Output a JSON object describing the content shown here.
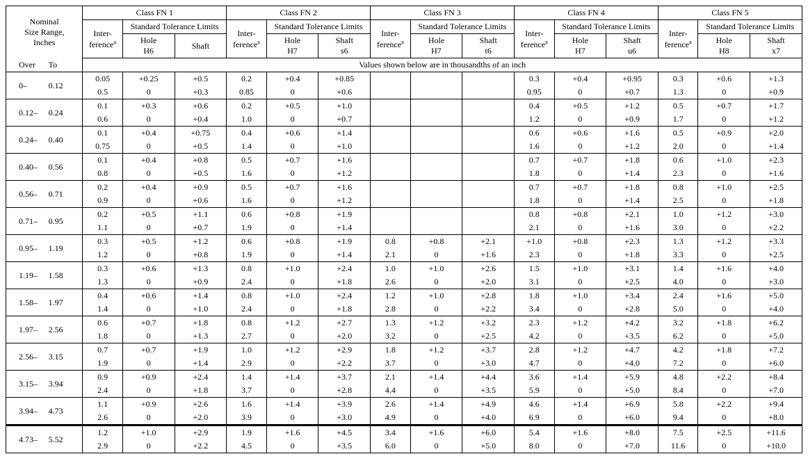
{
  "headings": {
    "nominal": "Nominal<br>Size Range,<br>Inches",
    "over": "Over",
    "to": "To",
    "class_fn1": "Class FN 1",
    "class_fn2": "Class FN 2",
    "class_fn3": "Class FN 3",
    "class_fn4": "Class FN 4",
    "class_fn5": "Class FN 5",
    "stl": "Standard Tolerance Limits",
    "inter": "Inter-<br>ference<sup>a</sup>",
    "hole_h6": "Hole<br>H6",
    "hole_h7": "Hole<br>H7",
    "hole_h8": "Hole<br>H8",
    "shaft_blank": "Shaft",
    "shaft_s6": "Shaft<br>s6",
    "shaft_t6": "Shaft<br>t6",
    "shaft_u6": "Shaft<br>u6",
    "shaft_x7": "Shaft<br>x7",
    "values_note": "Values shown below are in thousandths of an inch"
  },
  "rows": [
    {
      "over": "0–",
      "to": "0.12",
      "fn1": {
        "int": [
          "0.05",
          "0.5"
        ],
        "hole": [
          "+0.25",
          "0"
        ],
        "shaft": [
          "+0.5",
          "+0.3"
        ]
      },
      "fn2": {
        "int": [
          "0.2",
          "0.85"
        ],
        "hole": [
          "+0.4",
          "0"
        ],
        "shaft": [
          "+0.85",
          "+0.6"
        ]
      },
      "fn3": {
        "int": [
          "",
          ""
        ],
        "hole": [
          "",
          ""
        ],
        "shaft": [
          "",
          ""
        ]
      },
      "fn4": {
        "int": [
          "0.3",
          "0.95"
        ],
        "hole": [
          "+0.4",
          "0"
        ],
        "shaft": [
          "+0.95",
          "+0.7"
        ]
      },
      "fn5": {
        "int": [
          "0.3",
          "1.3"
        ],
        "hole": [
          "+0.6",
          "0"
        ],
        "shaft": [
          "+1.3",
          "+0.9"
        ]
      }
    },
    {
      "over": "0.12–",
      "to": "0.24",
      "fn1": {
        "int": [
          "0.1",
          "0.6"
        ],
        "hole": [
          "+0.3",
          "0"
        ],
        "shaft": [
          "+0.6",
          "+0.4"
        ]
      },
      "fn2": {
        "int": [
          "0.2",
          "1.0"
        ],
        "hole": [
          "+0.5",
          "0"
        ],
        "shaft": [
          "+1.0",
          "+0.7"
        ]
      },
      "fn3": {
        "int": [
          "",
          ""
        ],
        "hole": [
          "",
          ""
        ],
        "shaft": [
          "",
          ""
        ]
      },
      "fn4": {
        "int": [
          "0.4",
          "1.2"
        ],
        "hole": [
          "+0.5",
          "0"
        ],
        "shaft": [
          "+1.2",
          "+0.9"
        ]
      },
      "fn5": {
        "int": [
          "0.5",
          "1.7"
        ],
        "hole": [
          "+0.7",
          "0"
        ],
        "shaft": [
          "+1.7",
          "+1.2"
        ]
      }
    },
    {
      "over": "0.24–",
      "to": "0.40",
      "fn1": {
        "int": [
          "0.1",
          "0.75"
        ],
        "hole": [
          "+0.4",
          "0"
        ],
        "shaft": [
          "+0.75",
          "+0.5"
        ]
      },
      "fn2": {
        "int": [
          "0.4",
          "1.4"
        ],
        "hole": [
          "+0.6",
          "0"
        ],
        "shaft": [
          "+1.4",
          "+1.0"
        ]
      },
      "fn3": {
        "int": [
          "",
          ""
        ],
        "hole": [
          "",
          ""
        ],
        "shaft": [
          "",
          ""
        ]
      },
      "fn4": {
        "int": [
          "0.6",
          "1.6"
        ],
        "hole": [
          "+0.6",
          "0"
        ],
        "shaft": [
          "+1.6",
          "+1.2"
        ]
      },
      "fn5": {
        "int": [
          "0.5",
          "2.0"
        ],
        "hole": [
          "+0.9",
          "0"
        ],
        "shaft": [
          "+2.0",
          "+1.4"
        ]
      }
    },
    {
      "over": "0.40–",
      "to": "0.56",
      "fn1": {
        "int": [
          "0.1",
          "0.8"
        ],
        "hole": [
          "+0.4",
          "0"
        ],
        "shaft": [
          "+0.8",
          "+0.5"
        ]
      },
      "fn2": {
        "int": [
          "0.5",
          "1.6"
        ],
        "hole": [
          "+0.7",
          "0"
        ],
        "shaft": [
          "+1.6",
          "+1.2"
        ]
      },
      "fn3": {
        "int": [
          "",
          ""
        ],
        "hole": [
          "",
          ""
        ],
        "shaft": [
          "",
          ""
        ]
      },
      "fn4": {
        "int": [
          "0.7",
          "1.8"
        ],
        "hole": [
          "+0.7",
          "0"
        ],
        "shaft": [
          "+1.8",
          "+1.4"
        ]
      },
      "fn5": {
        "int": [
          "0.6",
          "2.3"
        ],
        "hole": [
          "+1.0",
          "0"
        ],
        "shaft": [
          "+2.3",
          "+1.6"
        ]
      }
    },
    {
      "over": "0.56–",
      "to": "0.71",
      "fn1": {
        "int": [
          "0.2",
          "0.9"
        ],
        "hole": [
          "+0.4",
          "0"
        ],
        "shaft": [
          "+0.9",
          "+0.6"
        ]
      },
      "fn2": {
        "int": [
          "0.5",
          "1.6"
        ],
        "hole": [
          "+0.7",
          "0"
        ],
        "shaft": [
          "+1.6",
          "+1.2"
        ]
      },
      "fn3": {
        "int": [
          "",
          ""
        ],
        "hole": [
          "",
          ""
        ],
        "shaft": [
          "",
          ""
        ]
      },
      "fn4": {
        "int": [
          "0.7",
          "1.8"
        ],
        "hole": [
          "+0.7",
          "0"
        ],
        "shaft": [
          "+1.8",
          "+1.4"
        ]
      },
      "fn5": {
        "int": [
          "0.8",
          "2.5"
        ],
        "hole": [
          "+1.0",
          "0"
        ],
        "shaft": [
          "+2.5",
          "+1.8"
        ]
      }
    },
    {
      "over": "0.71–",
      "to": "0.95",
      "fn1": {
        "int": [
          "0.2",
          "1.1"
        ],
        "hole": [
          "+0.5",
          "0"
        ],
        "shaft": [
          "+1.1",
          "+0.7"
        ]
      },
      "fn2": {
        "int": [
          "0.6",
          "1.9"
        ],
        "hole": [
          "+0.8",
          "0"
        ],
        "shaft": [
          "+1.9",
          "+1.4"
        ]
      },
      "fn3": {
        "int": [
          "",
          ""
        ],
        "hole": [
          "",
          ""
        ],
        "shaft": [
          "",
          ""
        ]
      },
      "fn4": {
        "int": [
          "0.8",
          "2.1"
        ],
        "hole": [
          "+0.8",
          "0"
        ],
        "shaft": [
          "+2.1",
          "+1.6"
        ]
      },
      "fn5": {
        "int": [
          "1.0",
          "3.0"
        ],
        "hole": [
          "+1.2",
          "0"
        ],
        "shaft": [
          "+3.0",
          "+2.2"
        ]
      }
    },
    {
      "over": "0.95–",
      "to": "1.19",
      "fn1": {
        "int": [
          "0.3",
          "1.2"
        ],
        "hole": [
          "+0.5",
          "0"
        ],
        "shaft": [
          "+1.2",
          "+0.8"
        ]
      },
      "fn2": {
        "int": [
          "0.6",
          "1.9"
        ],
        "hole": [
          "+0.8",
          "0"
        ],
        "shaft": [
          "+1.9",
          "+1.4"
        ]
      },
      "fn3": {
        "int": [
          "0.8",
          "2.1"
        ],
        "hole": [
          "+0.8",
          "0"
        ],
        "shaft": [
          "+2.1",
          "+1.6"
        ]
      },
      "fn4": {
        "int": [
          "+1.0",
          "2.3"
        ],
        "hole": [
          "+0.8",
          "0"
        ],
        "shaft": [
          "+2.3",
          "+1.8"
        ]
      },
      "fn5": {
        "int": [
          "1.3",
          "3.3"
        ],
        "hole": [
          "+1.2",
          "0"
        ],
        "shaft": [
          "+3.3",
          "+2.5"
        ]
      }
    },
    {
      "over": "1.19–",
      "to": "1.58",
      "fn1": {
        "int": [
          "0.3",
          "1.3"
        ],
        "hole": [
          "+0.6",
          "0"
        ],
        "shaft": [
          "+1.3",
          "+0.9"
        ]
      },
      "fn2": {
        "int": [
          "0.8",
          "2.4"
        ],
        "hole": [
          "+1.0",
          "0"
        ],
        "shaft": [
          "+2.4",
          "+1.8"
        ]
      },
      "fn3": {
        "int": [
          "1.0",
          "2.6"
        ],
        "hole": [
          "+1.0",
          "0"
        ],
        "shaft": [
          "+2.6",
          "+2.0"
        ]
      },
      "fn4": {
        "int": [
          "1.5",
          "3.1"
        ],
        "hole": [
          "+1.0",
          "0"
        ],
        "shaft": [
          "+3.1",
          "+2.5"
        ]
      },
      "fn5": {
        "int": [
          "1.4",
          "4.0"
        ],
        "hole": [
          "+1.6",
          "0"
        ],
        "shaft": [
          "+4.0",
          "+3.0"
        ]
      }
    },
    {
      "over": "1.58–",
      "to": "1.97",
      "fn1": {
        "int": [
          "0.4",
          "1.4"
        ],
        "hole": [
          "+0.6",
          "0"
        ],
        "shaft": [
          "+1.4",
          "+1.0"
        ]
      },
      "fn2": {
        "int": [
          "0.8",
          "2.4"
        ],
        "hole": [
          "+1.0",
          "0"
        ],
        "shaft": [
          "+2.4",
          "+1.8"
        ]
      },
      "fn3": {
        "int": [
          "1.2",
          "2.8"
        ],
        "hole": [
          "+1.0",
          "0"
        ],
        "shaft": [
          "+2.8",
          "+2.2"
        ]
      },
      "fn4": {
        "int": [
          "1.8",
          "3.4"
        ],
        "hole": [
          "+1.0",
          "0"
        ],
        "shaft": [
          "+3.4",
          "+2.8"
        ]
      },
      "fn5": {
        "int": [
          "2.4",
          "5.0"
        ],
        "hole": [
          "+1.6",
          "0"
        ],
        "shaft": [
          "+5.0",
          "+4.0"
        ]
      }
    },
    {
      "over": "1.97–",
      "to": "2.56",
      "fn1": {
        "int": [
          "0.6",
          "1.8"
        ],
        "hole": [
          "+0.7",
          "0"
        ],
        "shaft": [
          "+1.8",
          "+1.3"
        ]
      },
      "fn2": {
        "int": [
          "0.8",
          "2.7"
        ],
        "hole": [
          "+1.2",
          "0"
        ],
        "shaft": [
          "+2.7",
          "+2.0"
        ]
      },
      "fn3": {
        "int": [
          "1.3",
          "3.2"
        ],
        "hole": [
          "+1.2",
          "0"
        ],
        "shaft": [
          "+3.2",
          "+2.5"
        ]
      },
      "fn4": {
        "int": [
          "2.3",
          "4.2"
        ],
        "hole": [
          "+1.2",
          "0"
        ],
        "shaft": [
          "+4.2",
          "+3.5"
        ]
      },
      "fn5": {
        "int": [
          "3.2",
          "6.2"
        ],
        "hole": [
          "+1.8",
          "0"
        ],
        "shaft": [
          "+6.2",
          "+5.0"
        ]
      }
    },
    {
      "over": "2.56–",
      "to": "3.15",
      "fn1": {
        "int": [
          "0.7",
          "1.9"
        ],
        "hole": [
          "+0.7",
          "0"
        ],
        "shaft": [
          "+1.9",
          "+1.4"
        ]
      },
      "fn2": {
        "int": [
          "1.0",
          "2.9"
        ],
        "hole": [
          "+1.2",
          "0"
        ],
        "shaft": [
          "+2.9",
          "+2.2"
        ]
      },
      "fn3": {
        "int": [
          "1.8",
          "3.7"
        ],
        "hole": [
          "+1.2",
          "0"
        ],
        "shaft": [
          "+3.7",
          "+3.0"
        ]
      },
      "fn4": {
        "int": [
          "2.8",
          "4.7"
        ],
        "hole": [
          "+1.2",
          "0"
        ],
        "shaft": [
          "+4.7",
          "+4.0"
        ]
      },
      "fn5": {
        "int": [
          "4.2",
          "7.2"
        ],
        "hole": [
          "+1.8",
          "0"
        ],
        "shaft": [
          "+7.2",
          "+6.0"
        ]
      }
    },
    {
      "over": "3.15–",
      "to": "3.94",
      "fn1": {
        "int": [
          "0.9",
          "2.4"
        ],
        "hole": [
          "+0.9",
          "0"
        ],
        "shaft": [
          "+2.4",
          "+1.8"
        ]
      },
      "fn2": {
        "int": [
          "1.4",
          "3.7"
        ],
        "hole": [
          "+1.4",
          "0"
        ],
        "shaft": [
          "+3.7",
          "+2.8"
        ]
      },
      "fn3": {
        "int": [
          "2.1",
          "4.4"
        ],
        "hole": [
          "+1.4",
          "0"
        ],
        "shaft": [
          "+4.4",
          "+3.5"
        ]
      },
      "fn4": {
        "int": [
          "3.6",
          "5.9"
        ],
        "hole": [
          "+1.4",
          "0"
        ],
        "shaft": [
          "+5.9",
          "+5.0"
        ]
      },
      "fn5": {
        "int": [
          "4.8",
          "8.4"
        ],
        "hole": [
          "+2.2",
          "0"
        ],
        "shaft": [
          "+8.4",
          "+7.0"
        ]
      }
    },
    {
      "over": "3.94–",
      "to": "4.73",
      "fn1": {
        "int": [
          "1.1",
          "2.6"
        ],
        "hole": [
          "+0.9",
          "0"
        ],
        "shaft": [
          "+2.6",
          "+2.0"
        ]
      },
      "fn2": {
        "int": [
          "1.6",
          "3.9"
        ],
        "hole": [
          "+1.4",
          "0"
        ],
        "shaft": [
          "+3.9",
          "+3.0"
        ]
      },
      "fn3": {
        "int": [
          "2.6",
          "4.9"
        ],
        "hole": [
          "+1.4",
          "0"
        ],
        "shaft": [
          "+4.9",
          "+4.0"
        ]
      },
      "fn4": {
        "int": [
          "4.6",
          "6.9"
        ],
        "hole": [
          "+1.4",
          "0"
        ],
        "shaft": [
          "+6.9",
          "+6.0"
        ]
      },
      "fn5": {
        "int": [
          "5.8",
          "9.4"
        ],
        "hole": [
          "+2.2",
          "0"
        ],
        "shaft": [
          "+9.4",
          "+8.0"
        ]
      }
    },
    {
      "over": "4.73–",
      "to": "5.52",
      "fn1": {
        "int": [
          "1.2",
          "2.9"
        ],
        "hole": [
          "+1.0",
          "0"
        ],
        "shaft": [
          "+2.9",
          "+2.2"
        ]
      },
      "fn2": {
        "int": [
          "1.9",
          "4.5"
        ],
        "hole": [
          "+1.6",
          "0"
        ],
        "shaft": [
          "+4.5",
          "+3.5"
        ]
      },
      "fn3": {
        "int": [
          "3.4",
          "6.0"
        ],
        "hole": [
          "+1.6",
          "0"
        ],
        "shaft": [
          "+6.0",
          "+5.0"
        ]
      },
      "fn4": {
        "int": [
          "5.4",
          "8.0"
        ],
        "hole": [
          "+1.6",
          "0"
        ],
        "shaft": [
          "+8.0",
          "+7.0"
        ]
      },
      "fn5": {
        "int": [
          "7.5",
          "11.6"
        ],
        "hole": [
          "+2.5",
          "0"
        ],
        "shaft": [
          "+11.6",
          "+10.0"
        ]
      }
    }
  ]
}
